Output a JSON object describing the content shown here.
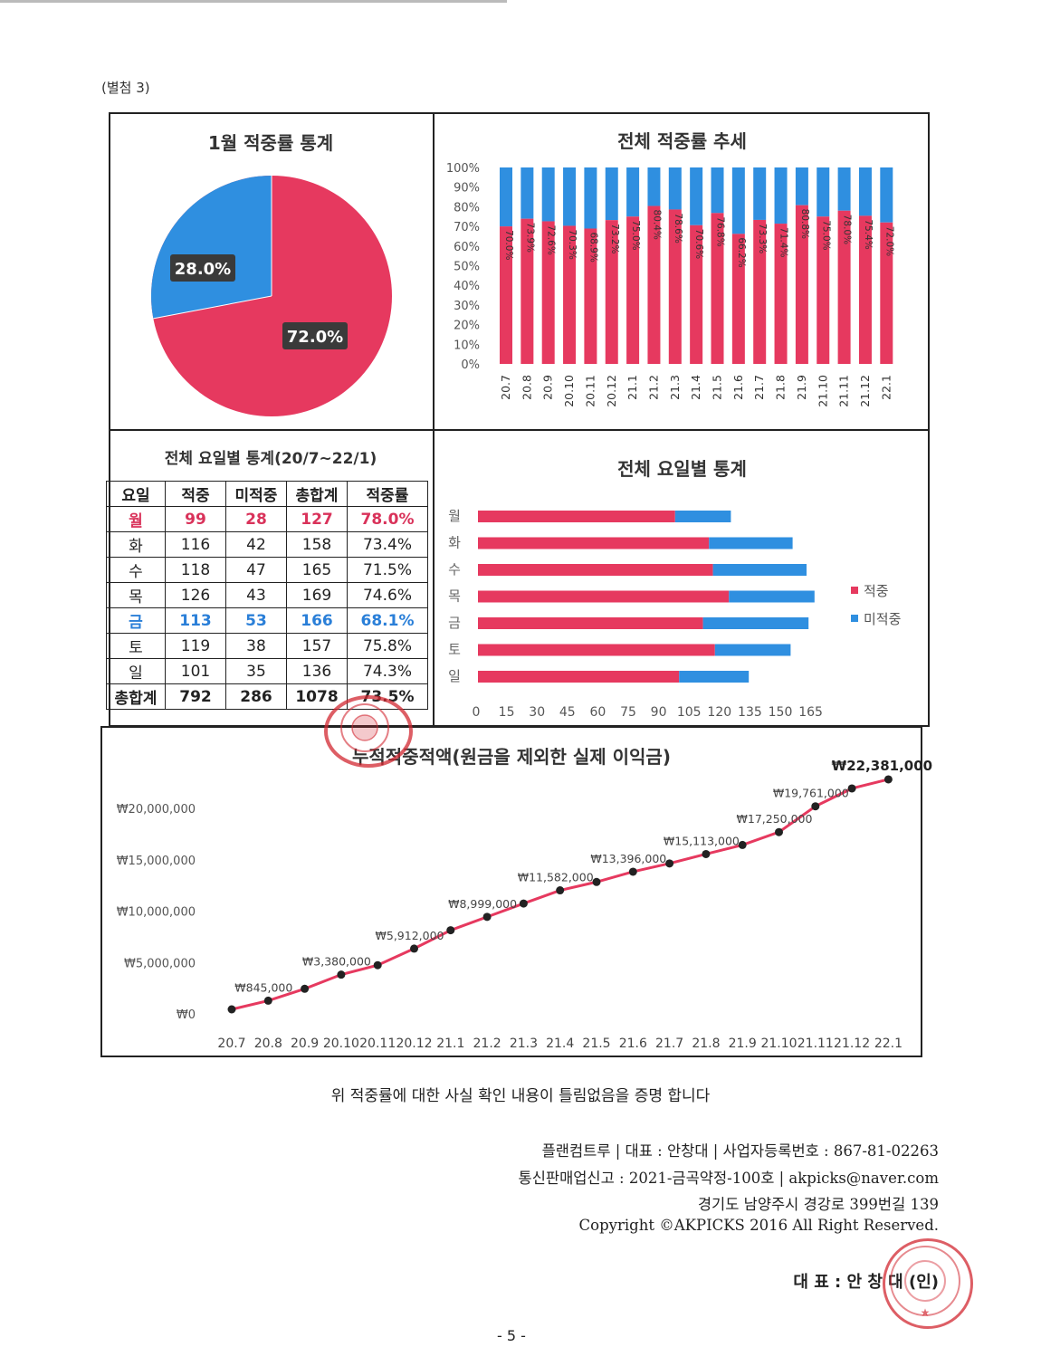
{
  "attachment_label": "(별첨 3)",
  "pie": {
    "title": "1월 적중률 통계",
    "hit_label": "72.0%",
    "miss_label": "28.0%",
    "hit_pct": 72.0,
    "miss_pct": 28.0,
    "hit_color": "#e6395f",
    "miss_color": "#2f8fe0"
  },
  "trend": {
    "title": "전체 적중률 추세",
    "yticks": [
      "100%",
      "90%",
      "80%",
      "70%",
      "60%",
      "50%",
      "40%",
      "30%",
      "20%",
      "10%",
      "0%"
    ],
    "months": [
      "20.7",
      "20.8",
      "20.9",
      "20.10",
      "20.11",
      "20.12",
      "21.1",
      "21.2",
      "21.3",
      "21.4",
      "21.5",
      "21.6",
      "21.7",
      "21.8",
      "21.9",
      "21.10",
      "21.11",
      "21.12",
      "22.1"
    ],
    "labels": [
      "70.0%",
      "73.9%",
      "72.6%",
      "70.3%",
      "68.9%",
      "73.2%",
      "75.0%",
      "80.4%",
      "78.6%",
      "70.6%",
      "76.8%",
      "66.2%",
      "73.3%",
      "71.4%",
      "80.8%",
      "75.0%",
      "78.0%",
      "75.4%",
      "72.0%"
    ]
  },
  "dow_table": {
    "title": "전체 요일별 통계(20/7~22/1)",
    "headers": [
      "요일",
      "적중",
      "미적중",
      "총합계",
      "적중률"
    ],
    "rows": [
      [
        "월",
        "99",
        "28",
        "127",
        "78.0%"
      ],
      [
        "화",
        "116",
        "42",
        "158",
        "73.4%"
      ],
      [
        "수",
        "118",
        "47",
        "165",
        "71.5%"
      ],
      [
        "목",
        "126",
        "43",
        "169",
        "74.6%"
      ],
      [
        "금",
        "113",
        "53",
        "166",
        "68.1%"
      ],
      [
        "토",
        "119",
        "38",
        "157",
        "75.8%"
      ],
      [
        "일",
        "101",
        "35",
        "136",
        "74.3%"
      ]
    ],
    "total": [
      "총합계",
      "792",
      "286",
      "1078",
      "73.5%"
    ]
  },
  "dow_chart": {
    "title": "전체 요일별 통계",
    "days": [
      "월",
      "화",
      "수",
      "목",
      "금",
      "토",
      "일"
    ],
    "hits": [
      99,
      116,
      118,
      126,
      113,
      119,
      101
    ],
    "misses": [
      28,
      42,
      47,
      43,
      53,
      38,
      35
    ],
    "xticks": [
      "0",
      "15",
      "30",
      "45",
      "60",
      "75",
      "90",
      "105",
      "120",
      "135",
      "150",
      "165"
    ],
    "legend_hit": "적중",
    "legend_miss": "미적중"
  },
  "cumulative": {
    "title": "누적적중적액(원금을 제외한 실제 이익금)",
    "yticks": [
      "₩20,000,000",
      "₩15,000,000",
      "₩10,000,000",
      "₩5,000,000",
      "₩0"
    ],
    "months": [
      "20.7",
      "20.8",
      "20.9",
      "20.10",
      "20.11",
      "20.12",
      "21.1",
      "21.2",
      "21.3",
      "21.4",
      "21.5",
      "21.6",
      "21.7",
      "21.8",
      "21.9",
      "21.10",
      "21.11",
      "21.12",
      "22.1"
    ],
    "value_labels": [
      "₩845,000",
      "₩3,380,000",
      "₩5,912,000",
      "₩8,999,000",
      "₩11,582,000",
      "₩13,396,000",
      "₩15,113,000",
      "₩17,250,000",
      "₩19,761,000",
      "₩22,381,000"
    ]
  },
  "chart_data": [
    {
      "type": "pie",
      "title": "1월 적중률 통계",
      "categories": [
        "적중",
        "미적중"
      ],
      "values": [
        72.0,
        28.0
      ]
    },
    {
      "type": "bar",
      "title": "전체 적중률 추세",
      "stacked": true,
      "categories": [
        "20.7",
        "20.8",
        "20.9",
        "20.10",
        "20.11",
        "20.12",
        "21.1",
        "21.2",
        "21.3",
        "21.4",
        "21.5",
        "21.6",
        "21.7",
        "21.8",
        "21.9",
        "21.10",
        "21.11",
        "21.12",
        "22.1"
      ],
      "series": [
        {
          "values": [
            70.0,
            73.9,
            72.6,
            70.3,
            68.9,
            73.2,
            75.0,
            80.4,
            78.6,
            70.6,
            76.8,
            66.2,
            73.3,
            71.4,
            80.8,
            75.0,
            78.0,
            75.4,
            72.0
          ]
        },
        {
          "values": [
            30.0,
            26.1,
            27.4,
            29.7,
            31.1,
            26.8,
            25.0,
            19.6,
            21.4,
            29.4,
            23.2,
            33.8,
            26.7,
            28.6,
            19.2,
            25.0,
            22.0,
            24.6,
            28.0
          ]
        }
      ],
      "ylim": [
        0,
        100
      ]
    },
    {
      "type": "bar",
      "orientation": "horizontal",
      "stacked": true,
      "title": "전체 요일별 통계",
      "categories": [
        "월",
        "화",
        "수",
        "목",
        "금",
        "토",
        "일"
      ],
      "series": [
        {
          "name": "적중",
          "values": [
            99,
            116,
            118,
            126,
            113,
            119,
            101
          ]
        },
        {
          "name": "미적중",
          "values": [
            28,
            42,
            47,
            43,
            53,
            38,
            35
          ]
        }
      ],
      "xlim": [
        0,
        165
      ]
    },
    {
      "type": "line",
      "title": "누적적중적액(원금을 제외한 실제 이익금)",
      "x": [
        "20.7",
        "20.8",
        "20.9",
        "20.10",
        "20.11",
        "20.12",
        "21.1",
        "21.2",
        "21.3",
        "21.4",
        "21.5",
        "21.6",
        "21.7",
        "21.8",
        "21.9",
        "21.10",
        "21.11",
        "21.12",
        "22.1"
      ],
      "y": [
        0,
        845000,
        2000000,
        3380000,
        4300000,
        5912000,
        7700000,
        8999000,
        10300000,
        11582000,
        12400000,
        13396000,
        14200000,
        15113000,
        16000000,
        17250000,
        19761000,
        21500000,
        22381000
      ],
      "ylim": [
        0,
        22500000
      ]
    }
  ],
  "certification": "위 적중률에 대한 사실 확인 내용이 틀림없음을 증명 합니다",
  "footer": {
    "line1": "플랜컴트루 | 대표 : 안창대 | 사업자등록번호 : 867-81-02263",
    "line2": "통신판매업신고 : 2021-금곡약정-100호 | akpicks@naver.com",
    "line3": "경기도 남양주시 경강로 399번길 139",
    "line4": "Copyright ©AKPICKS 2016 All Right Reserved.",
    "signature": "대 표 : 안 창 대 (인)"
  },
  "page_number": "- 5 -"
}
